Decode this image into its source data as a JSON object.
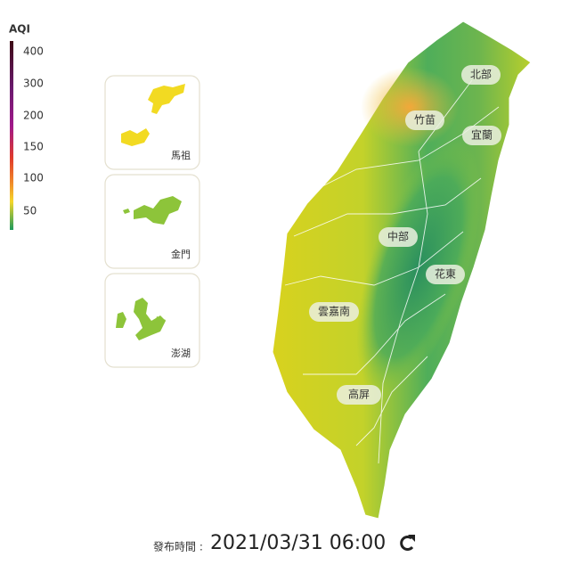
{
  "legend": {
    "title": "AQI",
    "ticks": [
      400,
      300,
      200,
      150,
      100,
      50
    ]
  },
  "insets": [
    {
      "label": "馬祖"
    },
    {
      "label": "金門"
    },
    {
      "label": "澎湖"
    }
  ],
  "regions": [
    "北部",
    "竹苗",
    "宜蘭",
    "中部",
    "花東",
    "雲嘉南",
    "高屏"
  ],
  "footer": {
    "label": "發布時間 :",
    "time": "2021/03/31 06:00"
  }
}
